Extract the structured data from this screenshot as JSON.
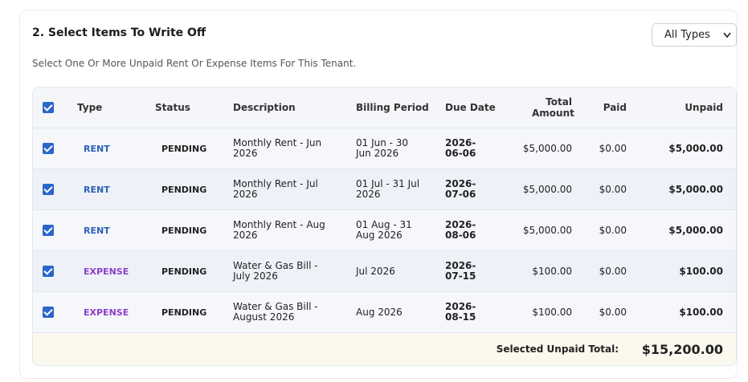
{
  "header": {
    "title": "2. Select Items To Write Off",
    "subtitle": "Select One Or More Unpaid Rent Or Expense Items For This Tenant.",
    "filter": "All Types"
  },
  "table": {
    "columns": [
      "Type",
      "Status",
      "Description",
      "Billing Period",
      "Due Date",
      "Total Amount",
      "Paid",
      "Unpaid"
    ],
    "rows": [
      {
        "type": "RENT",
        "type_color": "#2c5fb8",
        "status": "PENDING",
        "description": "Monthly Rent - Jun 2026",
        "billing_period": "01 Jun - 30 Jun 2026",
        "due_date": "2026-06-06",
        "total_amount": "$5,000.00",
        "paid": "$0.00",
        "unpaid": "$5,000.00"
      },
      {
        "type": "RENT",
        "type_color": "#2c5fb8",
        "status": "PENDING",
        "description": "Monthly Rent - Jul 2026",
        "billing_period": "01 Jul - 31 Jul 2026",
        "due_date": "2026-07-06",
        "total_amount": "$5,000.00",
        "paid": "$0.00",
        "unpaid": "$5,000.00"
      },
      {
        "type": "RENT",
        "type_color": "#2c5fb8",
        "status": "PENDING",
        "description": "Monthly Rent - Aug 2026",
        "billing_period": "01 Aug - 31 Aug 2026",
        "due_date": "2026-08-06",
        "total_amount": "$5,000.00",
        "paid": "$0.00",
        "unpaid": "$5,000.00"
      },
      {
        "type": "EXPENSE",
        "type_color": "#8a3fc9",
        "status": "PENDING",
        "description": "Water & Gas Bill - July 2026",
        "billing_period": "Jul 2026",
        "due_date": "2026-07-15",
        "total_amount": "$100.00",
        "paid": "$0.00",
        "unpaid": "$100.00"
      },
      {
        "type": "EXPENSE",
        "type_color": "#8a3fc9",
        "status": "PENDING",
        "description": "Water & Gas Bill - August 2026",
        "billing_period": "Aug 2026",
        "due_date": "2026-08-15",
        "total_amount": "$100.00",
        "paid": "$0.00",
        "unpaid": "$100.00"
      }
    ],
    "footer": {
      "label": "Selected Unpaid Total:",
      "total": "$15,200.00"
    }
  }
}
